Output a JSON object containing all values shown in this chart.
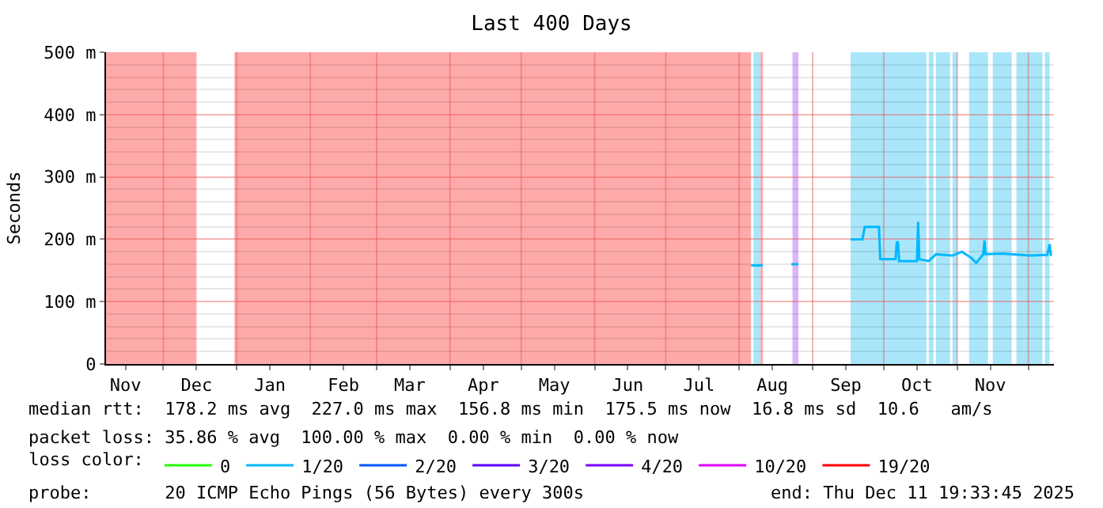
{
  "chart_data": {
    "type": "line",
    "title": "Last 400 Days",
    "ylabel": "Seconds",
    "legend_title": "loss color:",
    "xlim": [
      "2024-11-06T19:33",
      "2025-12-11T19:33"
    ],
    "xticks": [
      {
        "value": "2024-11-15",
        "label": "Nov"
      },
      {
        "value": "2024-12-01",
        "label": null
      },
      {
        "value": "2024-12-15",
        "label": "Dec"
      },
      {
        "value": "2025-01-01",
        "label": null
      },
      {
        "value": "2025-01-15",
        "label": "Jan"
      },
      {
        "value": "2025-02-01",
        "label": null
      },
      {
        "value": "2025-02-15",
        "label": "Feb"
      },
      {
        "value": "2025-03-01",
        "label": null
      },
      {
        "value": "2025-03-15",
        "label": "Mar"
      },
      {
        "value": "2025-04-01",
        "label": null
      },
      {
        "value": "2025-04-15",
        "label": "Apr"
      },
      {
        "value": "2025-05-01",
        "label": null
      },
      {
        "value": "2025-05-15",
        "label": "May"
      },
      {
        "value": "2025-06-01",
        "label": null
      },
      {
        "value": "2025-06-15",
        "label": "Jun"
      },
      {
        "value": "2025-07-01",
        "label": null
      },
      {
        "value": "2025-07-15",
        "label": "Jul"
      },
      {
        "value": "2025-08-01",
        "label": null
      },
      {
        "value": "2025-08-15",
        "label": "Aug"
      },
      {
        "value": "2025-09-01",
        "label": null
      },
      {
        "value": "2025-09-15",
        "label": "Sep"
      },
      {
        "value": "2025-10-01",
        "label": null
      },
      {
        "value": "2025-10-15",
        "label": "Oct"
      },
      {
        "value": "2025-11-01",
        "label": null
      },
      {
        "value": "2025-11-15",
        "label": "Nov"
      },
      {
        "value": "2025-12-01",
        "label": null
      }
    ],
    "ylim": [
      0,
      500
    ],
    "yticks": [
      0,
      {
        "value": 100,
        "label": "100 m"
      },
      {
        "value": 200,
        "label": "200 m"
      },
      {
        "value": 300,
        "label": "300 m"
      },
      {
        "value": 400,
        "label": "400 m"
      },
      {
        "value": 500,
        "label": "500 m"
      }
    ],
    "grid": true,
    "legend": "bottom",
    "marker": "none",
    "line_style": "solid",
    "series": [
      {
        "name": "0",
        "color": "#26ff00"
      },
      {
        "name": "1/20",
        "color": "#00b8ff",
        "x": [
          "2025-08-06",
          "2025-08-11",
          "2025-08-20",
          "2025-08-23",
          "2025-08-26",
          "2025-09-10",
          "2025-09-17",
          "2025-09-22",
          "2025-09-23",
          "2025-09-29",
          "2025-09-29T12:00",
          "2025-10-06",
          "2025-10-06T12:00",
          "2025-10-07",
          "2025-10-07T12:00",
          "2025-10-15",
          "2025-10-15T12:00",
          "2025-10-16",
          "2025-10-20",
          "2025-10-23",
          "2025-10-30",
          "2025-11-03",
          "2025-11-07",
          "2025-11-09",
          "2025-11-12",
          "2025-11-12T12:00",
          "2025-11-13",
          "2025-11-20",
          "2025-12-02",
          "2025-12-09",
          "2025-12-10",
          "2025-12-10T12:00",
          "2025-12-11"
        ],
        "values": [
          158,
          158,
          null,
          160,
          160,
          null,
          200,
          200,
          220,
          220,
          168,
          168,
          195,
          195,
          165,
          165,
          228,
          168,
          165,
          176,
          174,
          180,
          170,
          162,
          176,
          198,
          176,
          177,
          174,
          175,
          192,
          175,
          175
        ]
      },
      {
        "name": "2/20",
        "color": "#0059ff"
      },
      {
        "name": "3/20",
        "color": "#5e00ff"
      },
      {
        "name": "4/20",
        "color": "#7e00ff"
      },
      {
        "name": "10/20",
        "color": "#dd00ff"
      },
      {
        "name": "19/20",
        "color": "#ff0000"
      }
    ],
    "bands": [
      {
        "axis": "x",
        "from": "2024-11-06T19:33",
        "to": "2024-12-15",
        "color": "#ffaaaa"
      },
      {
        "axis": "x",
        "from": "2024-12-31",
        "to": "2025-08-06",
        "color": "#ffaaaa"
      },
      {
        "axis": "x",
        "from": "2025-08-07",
        "to": "2025-08-10",
        "color": "#aae6fa"
      },
      {
        "axis": "x",
        "from": "2025-08-10",
        "to": "2025-08-11",
        "color": "#ffaaaa"
      },
      {
        "axis": "x",
        "from": "2025-08-23T12:00",
        "to": "2025-08-26",
        "color": "#dcb4fa"
      },
      {
        "axis": "x",
        "from": "2025-09-17",
        "to": "2025-10-19",
        "color": "#aae6fa"
      },
      {
        "axis": "x",
        "from": "2025-10-20",
        "to": "2025-10-22",
        "color": "#aae6fa"
      },
      {
        "axis": "x",
        "from": "2025-10-23",
        "to": "2025-10-29",
        "color": "#aae6fa"
      },
      {
        "axis": "x",
        "from": "2025-10-30",
        "to": "2025-11-01",
        "color": "#aae6fa"
      },
      {
        "axis": "x",
        "from": "2025-11-06",
        "to": "2025-11-14",
        "color": "#aae6fa"
      },
      {
        "axis": "x",
        "from": "2025-11-16",
        "to": "2025-11-24",
        "color": "#aae6fa"
      },
      {
        "axis": "x",
        "from": "2025-11-26",
        "to": "2025-12-07",
        "color": "#aae6fa"
      },
      {
        "axis": "x",
        "from": "2025-12-08",
        "to": "2025-12-10",
        "color": "#aae6fa"
      }
    ],
    "annotations": [
      "median rtt:  178.2 ms avg  227.0 ms max  156.8 ms min  175.5 ms now  16.8 ms sd  10.6   am/s",
      "packet loss: 35.86 % avg  100.00 % max  0.00 % min  0.00 % now",
      "probe:       20 ICMP Echo Pings (56 Bytes) every 300s",
      "end: Thu Dec 11 19:33:45 2025"
    ]
  }
}
